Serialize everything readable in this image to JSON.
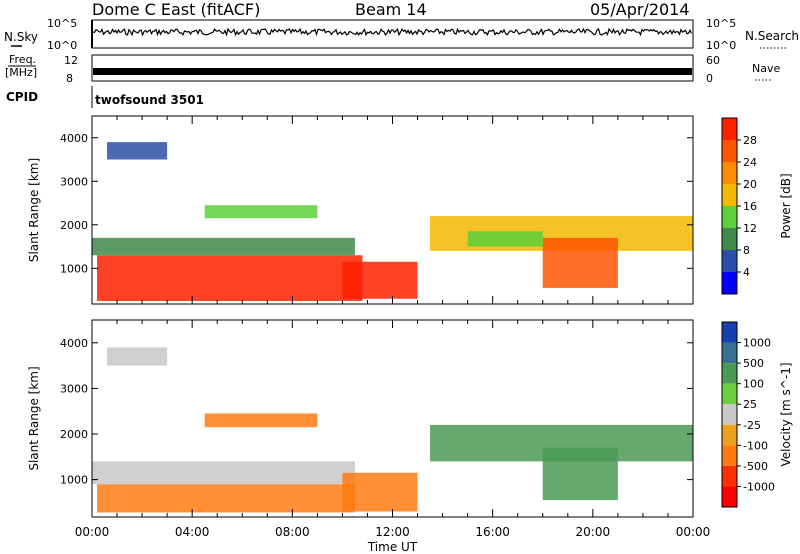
{
  "header": {
    "station": "Dome C East (fitACF)",
    "beam": "Beam 14",
    "date": "05/Apr/2014"
  },
  "top_panels": {
    "nsky_label": "N.Sky",
    "nsky_ticks": [
      "10^5",
      "10^0"
    ],
    "nsearch_label": "N.Search",
    "nsearch_ticks": [
      "10^5",
      "10^0"
    ],
    "freq_label_1": "Freq.",
    "freq_label_2": "[MHz]",
    "freq_ticks": [
      "12",
      "8"
    ],
    "nave_label": "Nave",
    "nave_ticks": [
      "60",
      "0"
    ],
    "cpid_label": "CPID",
    "cpid_value": "twofsound 3501"
  },
  "colors": {
    "power_scale": [
      "#0000ff",
      "#2b4fa8",
      "#3f8a4b",
      "#5bd03a",
      "#f5b800",
      "#ff8c00",
      "#ff5500",
      "#ff2000"
    ],
    "velocity_scale": [
      "#1a3fb0",
      "#3a6f8f",
      "#4a9a55",
      "#6ad040",
      "#c8c8c8",
      "#f0a020",
      "#ff7a10",
      "#ff3000",
      "#ff0000"
    ]
  },
  "chart_data": [
    {
      "type": "heatmap",
      "panel": "power",
      "ylabel": "Slant Range [km]",
      "xlabel": "",
      "ylim": [
        180,
        4500
      ],
      "yticks": [
        "1000",
        "2000",
        "3000",
        "4000"
      ],
      "xlim_hours": [
        0,
        24
      ],
      "colorbar": {
        "label": "Power [dB]",
        "ticks": [
          "4",
          "8",
          "12",
          "16",
          "20",
          "24",
          "28"
        ],
        "range": [
          0,
          32
        ]
      },
      "regions": [
        {
          "t0": 0.2,
          "t1": 10.8,
          "r0": 250,
          "r1": 1300,
          "value": 28
        },
        {
          "t0": 10.0,
          "t1": 13.0,
          "r0": 300,
          "r1": 1150,
          "value": 30
        },
        {
          "t0": 0.0,
          "t1": 10.5,
          "r0": 1300,
          "r1": 1700,
          "value": 8
        },
        {
          "t0": 0.6,
          "t1": 3.0,
          "r0": 3500,
          "r1": 3900,
          "value": 6
        },
        {
          "t0": 4.5,
          "t1": 9.0,
          "r0": 2150,
          "r1": 2450,
          "value": 12
        },
        {
          "t0": 13.5,
          "t1": 24.0,
          "r0": 1400,
          "r1": 2200,
          "value": 18
        },
        {
          "t0": 18.0,
          "t1": 21.0,
          "r0": 550,
          "r1": 1700,
          "value": 26
        },
        {
          "t0": 15.0,
          "t1": 18.0,
          "r0": 1500,
          "r1": 1850,
          "value": 14
        }
      ]
    },
    {
      "type": "heatmap",
      "panel": "velocity",
      "ylabel": "Slant Range [km]",
      "xlabel": "Time UT",
      "ylim": [
        180,
        4500
      ],
      "yticks": [
        "1000",
        "2000",
        "3000",
        "4000"
      ],
      "xticks": [
        "00:00",
        "04:00",
        "08:00",
        "12:00",
        "16:00",
        "20:00",
        "00:00"
      ],
      "xlim_hours": [
        0,
        24
      ],
      "colorbar": {
        "label": "Velocity [m s^-1]",
        "ticks": [
          "1000",
          "500",
          "100",
          "25",
          "-25",
          "-100",
          "-500",
          "-1000"
        ]
      },
      "regions": [
        {
          "t0": 0.2,
          "t1": 10.5,
          "r0": 280,
          "r1": 900,
          "value": -200
        },
        {
          "t0": 0.0,
          "t1": 10.5,
          "r0": 900,
          "r1": 1400,
          "value": 0
        },
        {
          "t0": 10.0,
          "t1": 13.0,
          "r0": 300,
          "r1": 1150,
          "value": -300
        },
        {
          "t0": 0.6,
          "t1": 3.0,
          "r0": 3500,
          "r1": 3900,
          "value": 0
        },
        {
          "t0": 4.5,
          "t1": 9.0,
          "r0": 2150,
          "r1": 2450,
          "value": -200
        },
        {
          "t0": 13.5,
          "t1": 24.0,
          "r0": 1400,
          "r1": 2200,
          "value": 150
        },
        {
          "t0": 18.0,
          "t1": 21.0,
          "r0": 550,
          "r1": 1700,
          "value": 120
        }
      ]
    }
  ]
}
